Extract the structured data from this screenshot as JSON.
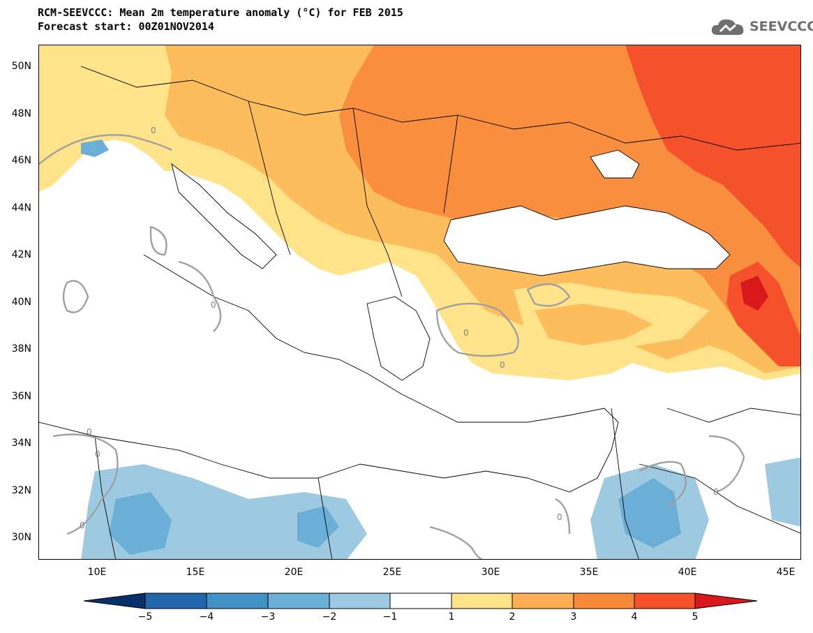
{
  "title": "RCM-SEEVCCC: Mean 2m temperature anomaly (°C) for FEB 2015",
  "subtitle": "Forecast start: 00Z01NOV2014",
  "logo": {
    "text": "SEEVCCC",
    "icon": "cloud-icon"
  },
  "latitude_labels": [
    "50N",
    "48N",
    "46N",
    "44N",
    "42N",
    "40N",
    "38N",
    "36N",
    "34N",
    "32N",
    "30N"
  ],
  "longitude_labels": [
    "10E",
    "15E",
    "20E",
    "25E",
    "30E",
    "35E",
    "40E",
    "45E"
  ],
  "contour_label": "0",
  "colorbar": {
    "labels": [
      "−5",
      "−4",
      "−3",
      "−2",
      "−1",
      "1",
      "2",
      "3",
      "4",
      "5"
    ],
    "colors": [
      "#08306b",
      "#2166ac",
      "#4292c6",
      "#6baed6",
      "#9ecae1",
      "#ffffff",
      "#fee38b",
      "#fdae55",
      "#f98a3a",
      "#f4512c",
      "#d7191c"
    ]
  },
  "colors": {
    "anom_1_2": "#fee38b",
    "anom_2_3": "#fdbd5c",
    "anom_3_4": "#f98e3e",
    "anom_4_5": "#f4512c",
    "anom_gt5": "#d7191c",
    "anom_m1_m2": "#9ecae1",
    "anom_m2_m3": "#6baed6",
    "anom_m3_m4": "#4292c6",
    "contour": "#a0a0a0"
  }
}
